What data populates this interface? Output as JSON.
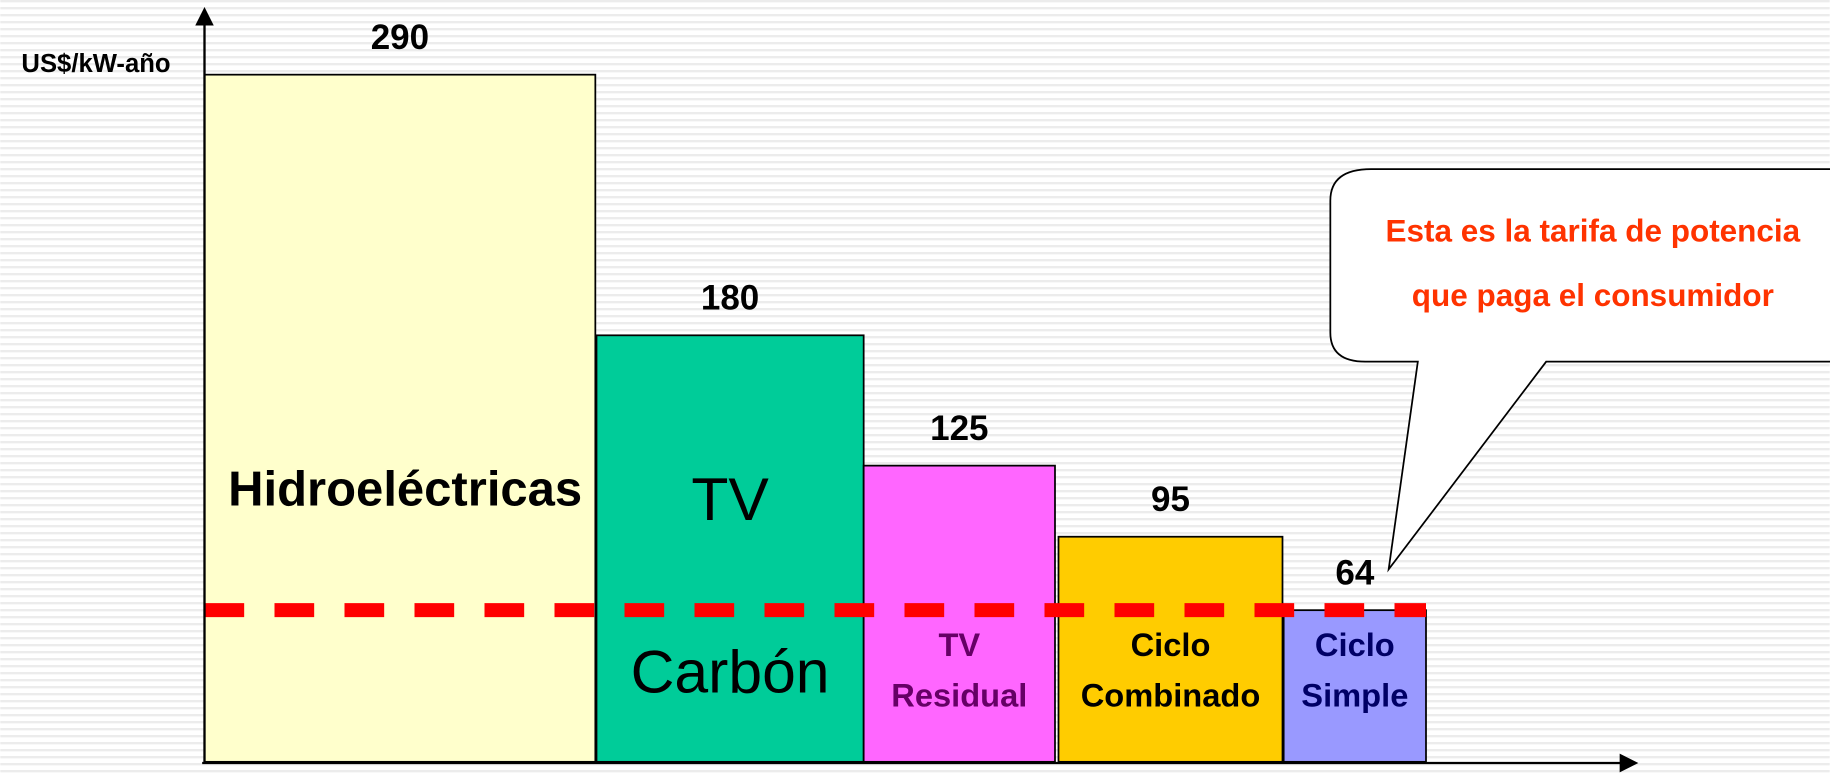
{
  "chart_data": {
    "type": "bar",
    "y_label": "US$/kW-año",
    "categories": [
      [
        "Hidroeléctricas"
      ],
      [
        "TV",
        "Carbón"
      ],
      [
        "TV",
        "Residual"
      ],
      [
        "Ciclo",
        "Combinado"
      ],
      [
        "Ciclo",
        "Simple"
      ]
    ],
    "values": [
      290,
      180,
      125,
      95,
      64
    ],
    "colors": [
      "#ffffcc",
      "#00cc99",
      "#ff66ff",
      "#ffcc00",
      "#9999ff"
    ],
    "ylim": [
      0,
      290
    ],
    "reference_color": "#ff0000",
    "annotation": [
      "Esta es la tarifa de potencia",
      "que paga el consumidor"
    ]
  }
}
